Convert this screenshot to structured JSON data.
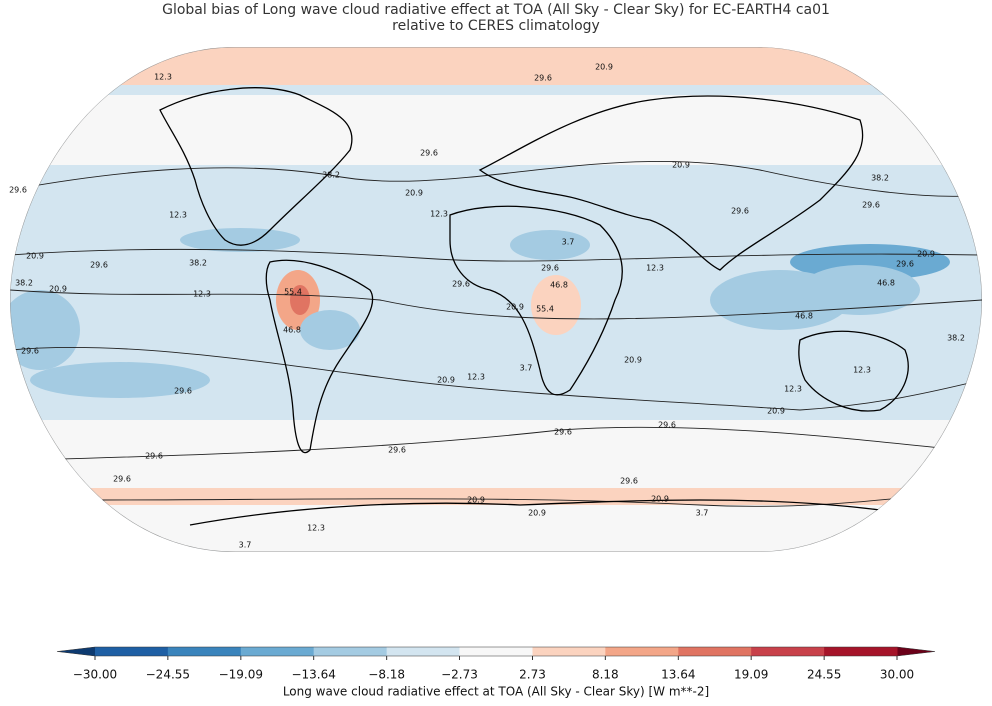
{
  "title": [
    "Global bias of Long wave cloud radiative effect at TOA (All Sky - Clear Sky) for EC-EARTH4 ca01",
    "relative to CERES climatology"
  ],
  "colorbar": {
    "label": "Long wave cloud radiative effect at TOA (All Sky - Clear Sky) [W m**-2]",
    "ticks": [
      {
        "value": -30,
        "label": "−30.00"
      },
      {
        "value": -24.55,
        "label": "−24.55"
      },
      {
        "value": -19.09,
        "label": "−19.09"
      },
      {
        "value": -13.64,
        "label": "−13.64"
      },
      {
        "value": -8.18,
        "label": "−8.18"
      },
      {
        "value": -2.73,
        "label": "−2.73"
      },
      {
        "value": 2.73,
        "label": "2.73"
      },
      {
        "value": 8.18,
        "label": "8.18"
      },
      {
        "value": 13.64,
        "label": "13.64"
      },
      {
        "value": 19.09,
        "label": "19.09"
      },
      {
        "value": 24.55,
        "label": "24.55"
      },
      {
        "value": 30,
        "label": "30.00"
      }
    ],
    "colors": [
      "#1e5fa4",
      "#3a84bc",
      "#6aaad2",
      "#a4cbe2",
      "#d3e5f0",
      "#f7f7f7",
      "#fbd3bf",
      "#f3a688",
      "#e07462",
      "#c8414a",
      "#a51429"
    ],
    "under_color": "#0d3a70",
    "over_color": "#6b0019"
  },
  "contour_labels": [
    "12.3",
    "29.6",
    "20.9",
    "38.2",
    "29.6",
    "20.9",
    "29.6",
    "12.3",
    "12.3",
    "3.7",
    "20.9",
    "29.6",
    "38.2",
    "38.2",
    "20.9",
    "12.3",
    "29.6",
    "12.3",
    "29.6",
    "29.6",
    "38.2",
    "20.9",
    "29.6",
    "46.8",
    "55.4",
    "46.8",
    "29.6",
    "46.8",
    "55.4",
    "20.9",
    "46.8",
    "38.2",
    "29.6",
    "20.9",
    "12.3",
    "3.7",
    "20.9",
    "12.3",
    "12.3",
    "20.9",
    "29.6",
    "29.6",
    "29.6",
    "29.6",
    "29.6",
    "29.6",
    "29.6",
    "20.9",
    "20.9",
    "20.9",
    "3.7",
    "12.3",
    "3.7",
    "20.9"
  ]
}
